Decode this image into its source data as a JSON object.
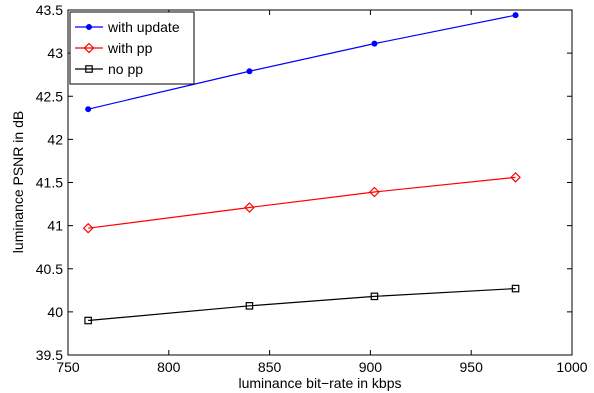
{
  "chart_data": {
    "type": "line",
    "xlabel": "luminance bit−rate in kbps",
    "ylabel": "luminance PSNR in dB",
    "xlim": [
      750,
      1000
    ],
    "ylim": [
      39.5,
      43.5
    ],
    "xticks": [
      "750",
      "800",
      "850",
      "900",
      "950",
      "1000"
    ],
    "yticks": [
      "39.5",
      "40",
      "40.5",
      "41",
      "41.5",
      "42",
      "42.5",
      "43",
      "43.5"
    ],
    "grid": false,
    "legend_position": "top-left",
    "x": [
      760,
      840,
      902,
      972
    ],
    "series": [
      {
        "name": "with update",
        "color": "#0000ff",
        "marker": "dot",
        "values": [
          42.35,
          42.79,
          43.11,
          43.44
        ]
      },
      {
        "name": "with pp",
        "color": "#ff0000",
        "marker": "diamond",
        "values": [
          40.97,
          41.21,
          41.39,
          41.56
        ]
      },
      {
        "name": "no pp",
        "color": "#000000",
        "marker": "square",
        "values": [
          39.9,
          40.07,
          40.18,
          40.27
        ]
      }
    ]
  }
}
